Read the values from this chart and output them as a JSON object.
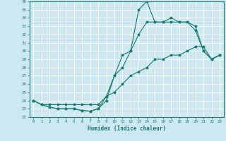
{
  "xlabel": "Humidex (Indice chaleur)",
  "bg_color": "#cde8f0",
  "grid_color": "#ffffff",
  "line_color": "#1a7a6e",
  "xlim": [
    -0.5,
    23.5
  ],
  "ylim": [
    22,
    36
  ],
  "xticks": [
    0,
    1,
    2,
    3,
    4,
    5,
    6,
    7,
    8,
    9,
    10,
    11,
    12,
    13,
    14,
    15,
    16,
    17,
    18,
    19,
    20,
    21,
    22,
    23
  ],
  "yticks": [
    22,
    23,
    24,
    25,
    26,
    27,
    28,
    29,
    30,
    31,
    32,
    33,
    34,
    35,
    36
  ],
  "line1": [
    24.0,
    23.5,
    23.2,
    23.0,
    23.0,
    23.0,
    22.8,
    22.7,
    23.0,
    24.0,
    27.0,
    29.5,
    30.0,
    35.0,
    36.0,
    33.5,
    33.5,
    34.0,
    33.5,
    33.5,
    32.5,
    30.0,
    29.0,
    29.5
  ],
  "line2": [
    24.0,
    23.5,
    23.2,
    23.0,
    23.0,
    23.0,
    22.8,
    22.7,
    23.0,
    24.5,
    27.0,
    28.0,
    30.0,
    32.0,
    33.5,
    33.5,
    33.5,
    33.5,
    33.5,
    33.5,
    33.0,
    30.0,
    29.0,
    29.5
  ],
  "line3": [
    24.0,
    23.5,
    23.5,
    23.5,
    23.5,
    23.5,
    23.5,
    23.5,
    23.5,
    24.5,
    25.0,
    26.0,
    27.0,
    27.5,
    28.0,
    29.0,
    29.0,
    29.5,
    29.5,
    30.0,
    30.5,
    30.5,
    29.0,
    29.5
  ]
}
